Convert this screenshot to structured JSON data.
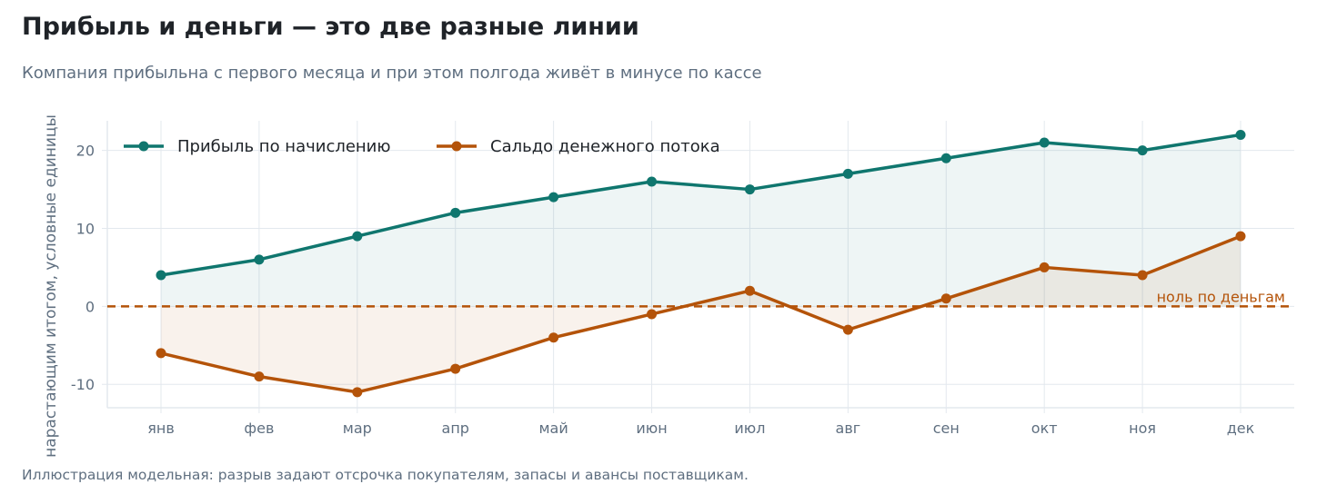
{
  "header": {
    "title": "Прибыль и деньги — это две разные линии",
    "subtitle": "Компания прибыльна с первого месяца и при этом полгода живёт в минусе по кассе"
  },
  "footnote": "Иллюстрация модельная: разрыв задают отсрочка покупателям, запасы и авансы поставщикам.",
  "colors": {
    "profit": "#0f766e",
    "cash": "#b45309",
    "grid": "#e3e8ee",
    "axis_text": "#5f6f80"
  },
  "chart_data": {
    "type": "line",
    "title": "Прибыль и деньги — это две разные линии",
    "subtitle": "Компания прибыльна с первого месяца и при этом полгода живёт в минусе по кассе",
    "xlabel": "",
    "ylabel": "нарастающим итогом, условные единицы",
    "categories": [
      "янв",
      "фев",
      "мар",
      "апр",
      "май",
      "июн",
      "июл",
      "авг",
      "сен",
      "окт",
      "ноя",
      "дек"
    ],
    "series": [
      {
        "name": "Прибыль по начислению",
        "color": "#0f766e",
        "values": [
          4,
          6,
          9,
          12,
          14,
          16,
          15,
          17,
          19,
          21,
          20,
          22
        ]
      },
      {
        "name": "Сальдо денежного потока",
        "color": "#b45309",
        "values": [
          -6,
          -9,
          -11,
          -8,
          -4,
          -1,
          2,
          -3,
          1,
          5,
          4,
          9
        ]
      }
    ],
    "ylim": [
      -13,
      23.8
    ],
    "yticks": [
      -10,
      0,
      10,
      20
    ],
    "ytick_labels": [
      "-10",
      "0",
      "10",
      "20"
    ],
    "reference_line": {
      "y": 0,
      "label": "ноль по деньгам",
      "style": "dashed",
      "color": "#b45309"
    },
    "fill_between_series": true,
    "grid": true,
    "legend": "top-left"
  }
}
